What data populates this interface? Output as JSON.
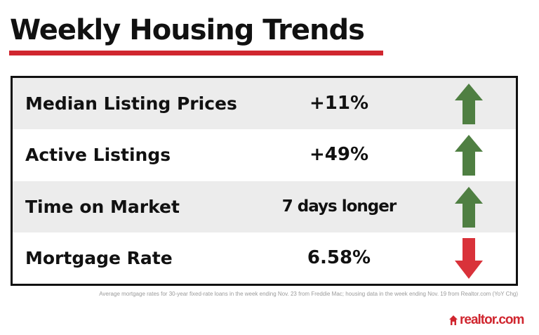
{
  "title": "Weekly Housing Trends",
  "colors": {
    "accent": "#d0262f",
    "up": "#4f7f42",
    "down": "#d9323a",
    "row_shade": "#ececec"
  },
  "rows": [
    {
      "label": "Median Listing Prices",
      "value": "+11%",
      "direction": "up",
      "icon": "arrow-up-icon"
    },
    {
      "label": "Active Listings",
      "value": "+49%",
      "direction": "up",
      "icon": "arrow-up-icon"
    },
    {
      "label": "Time on Market",
      "value": "7 days longer",
      "direction": "up",
      "icon": "arrow-up-icon"
    },
    {
      "label": "Mortgage Rate",
      "value": "6.58%",
      "direction": "down",
      "icon": "arrow-down-icon"
    }
  ],
  "footnote": "Average mortgage rates for 30-year fixed-rate loans in the week ending Nov. 23 from Freddie Mac; housing data in the week ending Nov. 19 from Realtor.com (YoY Chg)",
  "logo": {
    "text": "realtor.com",
    "icon": "house-icon"
  }
}
